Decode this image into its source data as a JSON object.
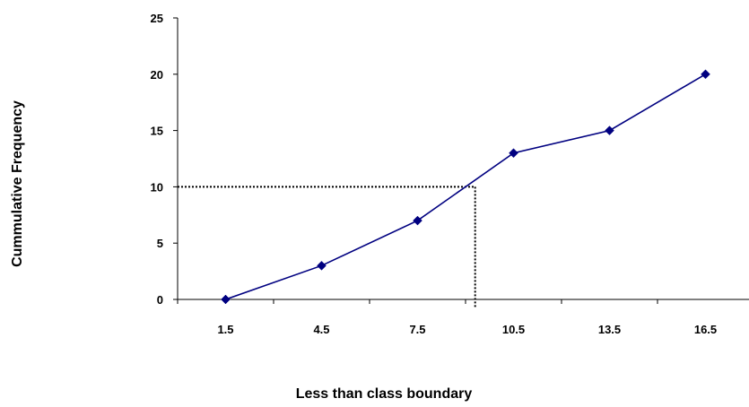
{
  "chart_data": {
    "type": "line",
    "title": "",
    "xlabel": "Less than class boundary",
    "ylabel": "Cummulative Frequency",
    "categories": [
      "1.5",
      "4.5",
      "7.5",
      "10.5",
      "13.5",
      "16.5"
    ],
    "x": [
      1.5,
      4.5,
      7.5,
      10.5,
      13.5,
      16.5
    ],
    "series": [
      {
        "values": [
          0,
          3,
          7,
          13,
          15,
          20
        ],
        "color": "#000080",
        "marker": "diamond"
      }
    ],
    "y_ticks": [
      "0",
      "5",
      "10",
      "15",
      "20",
      "25"
    ],
    "ylim": [
      0,
      25
    ],
    "grid": false,
    "legend": "none",
    "reference_lines": {
      "style": "dotted",
      "color": "#000000",
      "y_value": 10,
      "x_value": 9.3
    }
  }
}
